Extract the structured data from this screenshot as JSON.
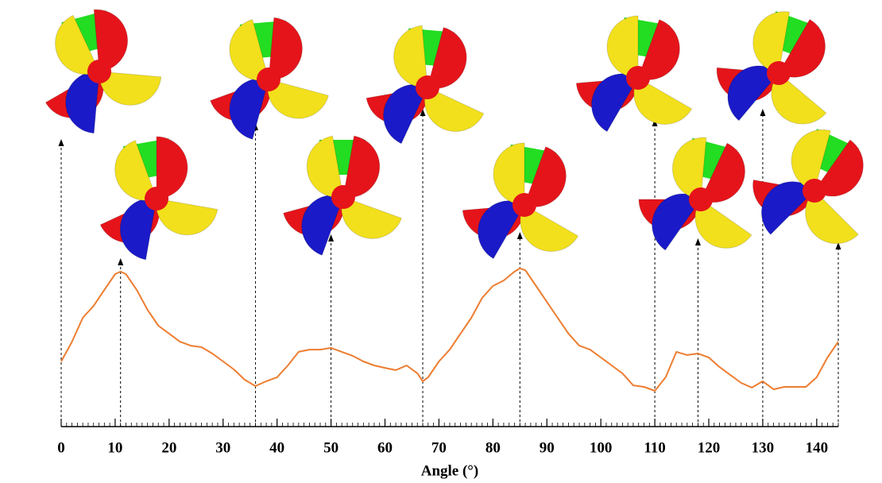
{
  "chart_data": {
    "type": "line",
    "x_label": "Angle (°)",
    "color": "#ed7d31",
    "x": [
      0,
      2,
      4,
      6,
      8,
      10,
      11,
      12,
      14,
      16,
      18,
      20,
      22,
      24,
      26,
      28,
      30,
      32,
      34,
      36,
      38,
      40,
      42,
      44,
      46,
      48,
      50,
      52,
      54,
      56,
      58,
      60,
      62,
      64,
      66,
      67,
      68,
      70,
      72,
      74,
      76,
      78,
      80,
      82,
      84,
      85,
      86,
      88,
      90,
      92,
      94,
      96,
      98,
      100,
      102,
      104,
      106,
      108,
      110,
      112,
      114,
      116,
      118,
      120,
      122,
      124,
      126,
      128,
      130,
      132,
      134,
      136,
      138,
      140,
      142,
      144
    ],
    "values": [
      34.6,
      45.1,
      57.8,
      64.1,
      72.6,
      81.0,
      82.3,
      81.0,
      72.6,
      62.0,
      53.6,
      49.4,
      45.1,
      43.0,
      42.2,
      38.8,
      34.6,
      30.4,
      24.9,
      21.5,
      24.1,
      26.2,
      32.5,
      39.7,
      40.9,
      40.9,
      41.8,
      39.7,
      37.6,
      34.6,
      32.5,
      31.2,
      30.0,
      32.5,
      28.3,
      24.1,
      26.2,
      34.6,
      40.9,
      49.4,
      57.8,
      68.4,
      74.7,
      77.6,
      82.3,
      84.0,
      83.1,
      74.7,
      66.2,
      57.8,
      49.4,
      43.0,
      40.9,
      36.7,
      32.5,
      28.3,
      21.9,
      21.1,
      19.0,
      26.2,
      39.7,
      38.0,
      38.8,
      36.7,
      31.6,
      27.4,
      23.2,
      20.7,
      24.1,
      19.8,
      21.1,
      21.1,
      21.1,
      26.2,
      36.7,
      45.1
    ],
    "xlim": [
      0,
      144
    ],
    "ylim": [
      0,
      100
    ],
    "xticks": [
      0,
      10,
      20,
      30,
      40,
      50,
      60,
      70,
      80,
      90,
      100,
      110,
      120,
      130,
      140
    ],
    "markers": [
      0,
      11,
      36,
      50,
      67,
      85,
      110,
      118,
      130,
      144
    ]
  }
}
